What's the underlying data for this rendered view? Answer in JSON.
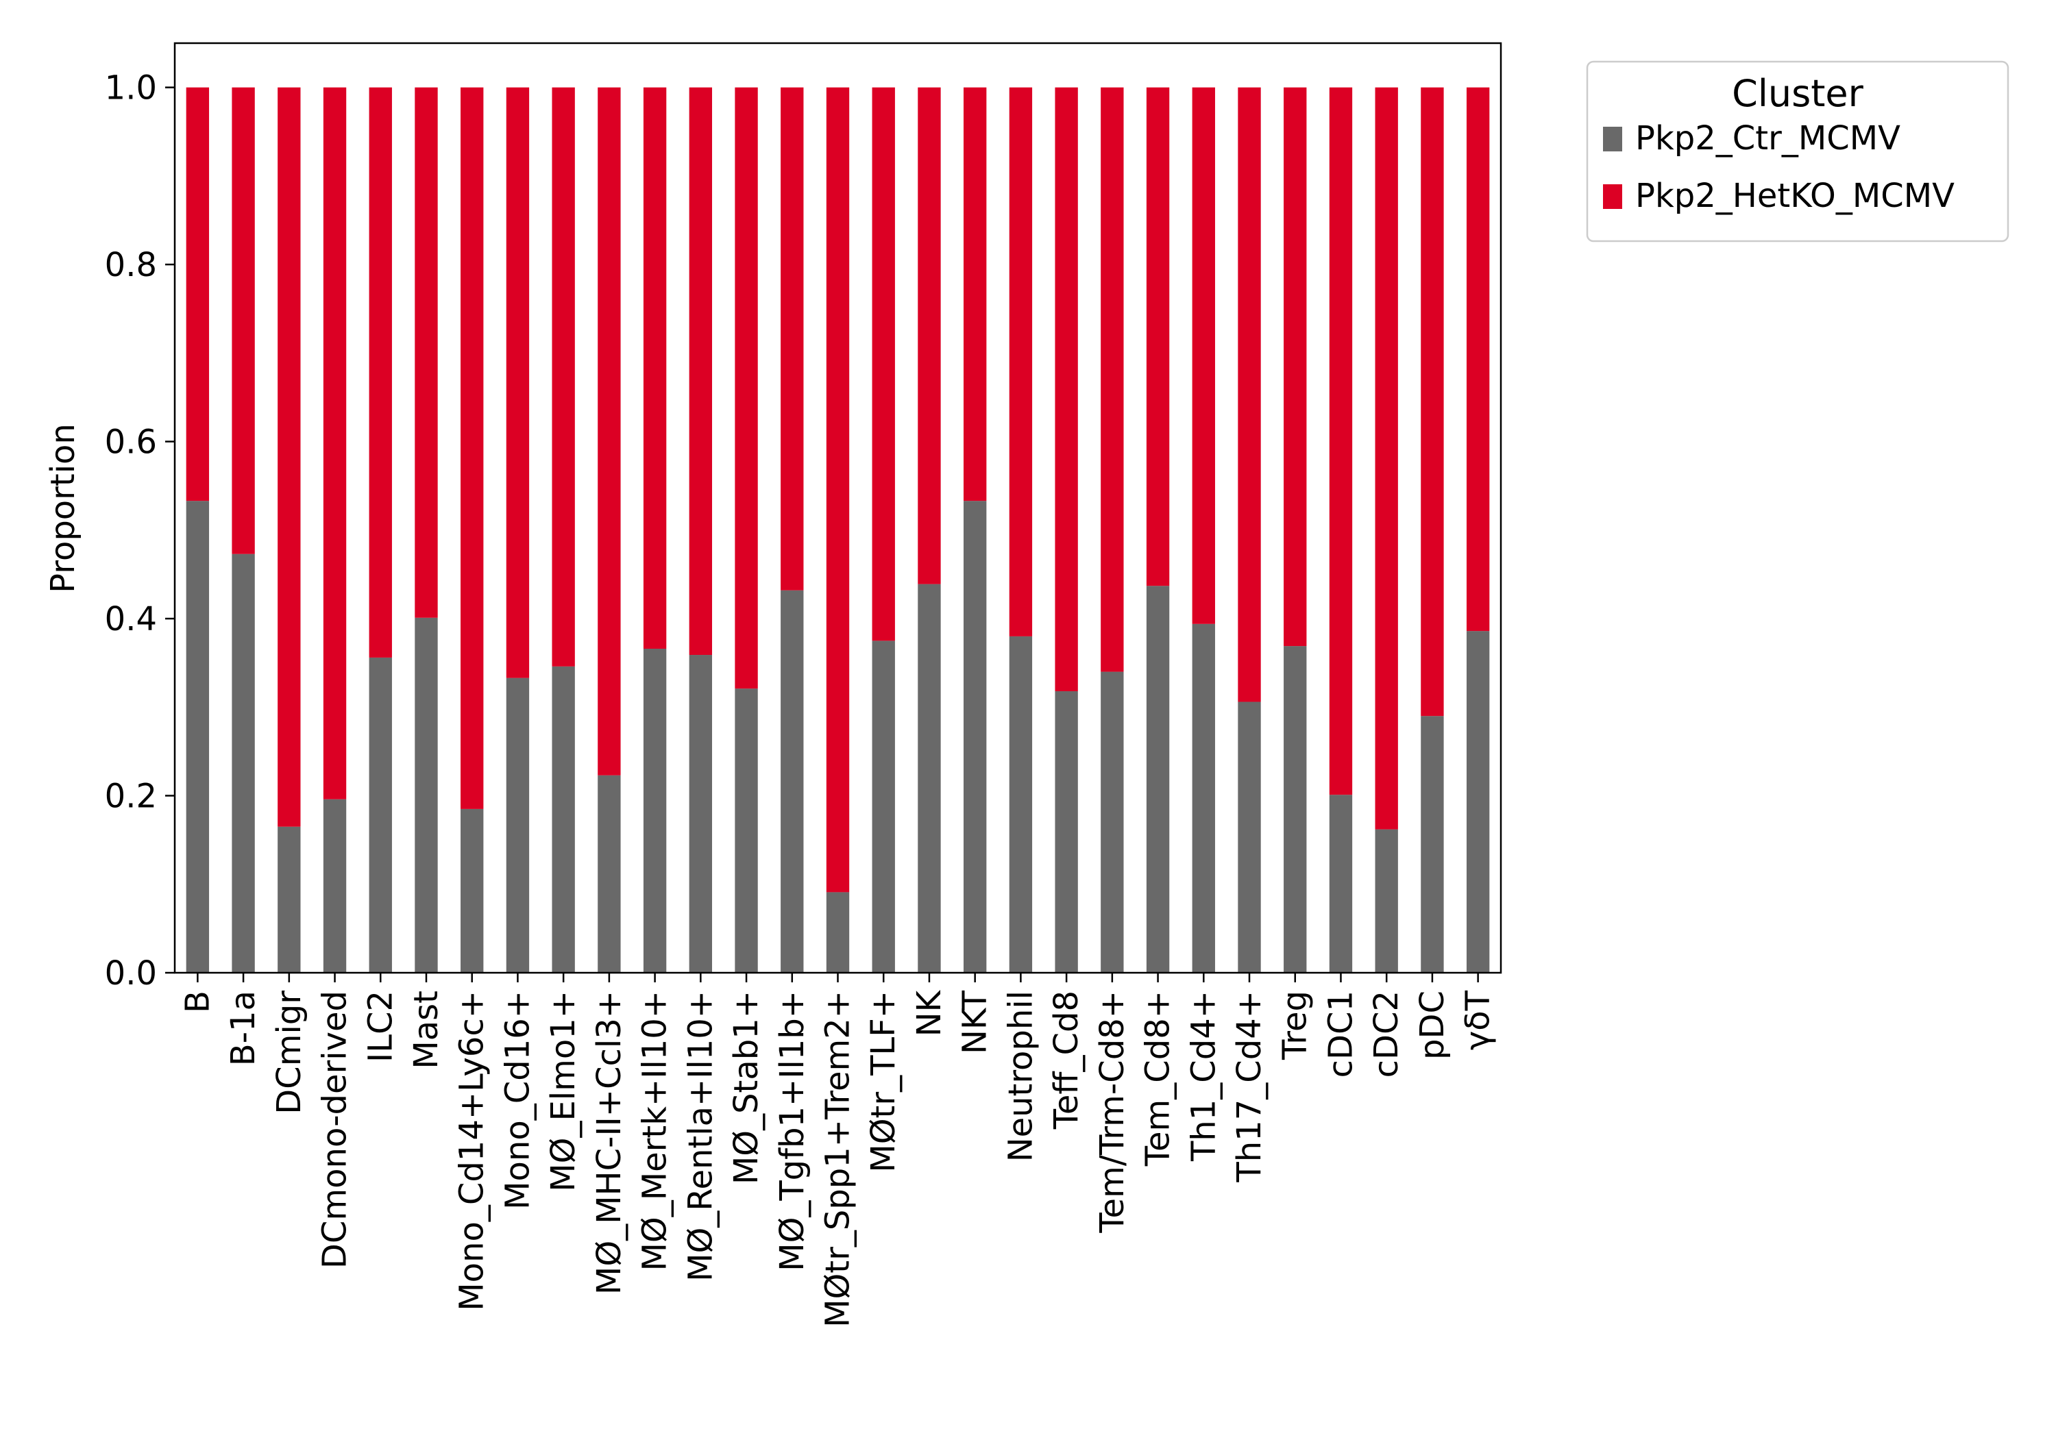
{
  "chart_data": {
    "type": "bar",
    "stacked": true,
    "title": "",
    "xlabel": "",
    "ylabel": "Proportion",
    "ylim": [
      0,
      1.05
    ],
    "yticks": [
      "0.0",
      "0.2",
      "0.4",
      "0.6",
      "0.8",
      "1.0"
    ],
    "grid": false,
    "legend": {
      "title": "Cluster",
      "placement": "outside-top-right"
    },
    "categories": [
      "B",
      "B-1a",
      "DCmigr",
      "DCmono-derived",
      "ILC2",
      "Mast",
      "Mono_Cd14+Ly6c+",
      "Mono_Cd16+",
      "MØ_Elmo1+",
      "MØ_MHC-II+Ccl3+",
      "MØ_Mertk+Il10+",
      "MØ_Rentla+Il10+",
      "MØ_Stab1+",
      "MØ_Tgfb1+Il1b+",
      "MØtr_Spp1+Trem2+",
      "MØtr_TLF+",
      "NK",
      "NKT",
      "Neutrophil",
      "Teff_Cd8",
      "Tem/Trm-Cd8+",
      "Tem_Cd8+",
      "Th1_Cd4+",
      "Th17_Cd4+",
      "Treg",
      "cDC1",
      "cDC2",
      "pDC",
      "γδT"
    ],
    "series": [
      {
        "name": "Pkp2_Ctr_MCMV",
        "color": "#696969",
        "values": [
          0.533,
          0.473,
          0.165,
          0.196,
          0.356,
          0.401,
          0.185,
          0.333,
          0.346,
          0.223,
          0.366,
          0.359,
          0.321,
          0.432,
          0.091,
          0.375,
          0.439,
          0.533,
          0.38,
          0.318,
          0.34,
          0.437,
          0.394,
          0.306,
          0.369,
          0.201,
          0.162,
          0.29,
          0.386
        ]
      },
      {
        "name": "Pkp2_HetKO_MCMV",
        "color": "#DC0024",
        "values": [
          0.467,
          0.527,
          0.835,
          0.804,
          0.644,
          0.599,
          0.815,
          0.667,
          0.654,
          0.777,
          0.634,
          0.641,
          0.679,
          0.568,
          0.909,
          0.625,
          0.561,
          0.467,
          0.62,
          0.682,
          0.66,
          0.563,
          0.606,
          0.694,
          0.631,
          0.799,
          0.838,
          0.71,
          0.614
        ]
      }
    ]
  }
}
